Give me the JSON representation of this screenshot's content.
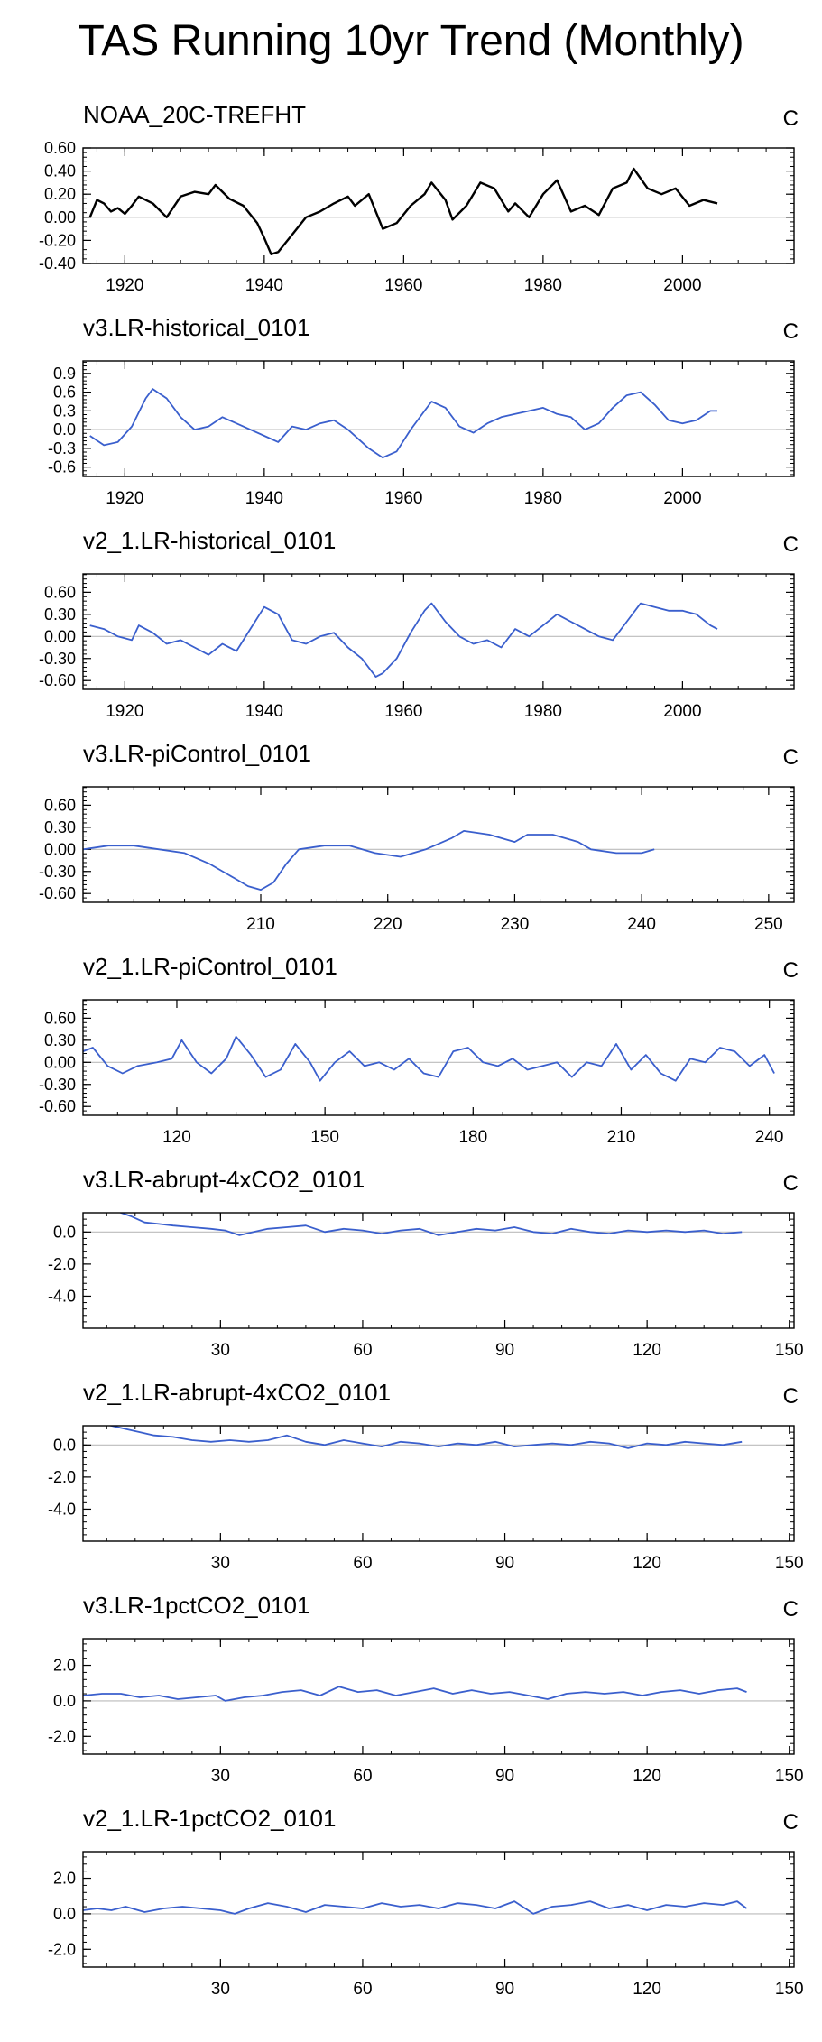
{
  "title": "TAS Running 10yr Trend (Monthly)",
  "colors": {
    "obs": "#000000",
    "model": "#3a5fcd",
    "zero": "#bbbbbb",
    "axis": "#000000"
  },
  "chart_data": [
    {
      "type": "line",
      "title": "NOAA_20C-TREFHT",
      "unit": "C",
      "color": "obs",
      "xlim": [
        1914,
        2016
      ],
      "ylim": [
        -0.4,
        0.6
      ],
      "xticks": [
        1920,
        1940,
        1960,
        1980,
        2000
      ],
      "xtick_labels": [
        "1920",
        "1940",
        "1960",
        "1980",
        "2000"
      ],
      "yticks": [
        -0.4,
        -0.2,
        0.0,
        0.2,
        0.4,
        0.6
      ],
      "ytick_labels": [
        "-0.40",
        "-0.20",
        "0.00",
        "0.20",
        "0.40",
        "0.60"
      ],
      "x": [
        1915,
        1916,
        1917,
        1918,
        1919,
        1920,
        1921,
        1922,
        1924,
        1926,
        1928,
        1930,
        1932,
        1933,
        1935,
        1937,
        1939,
        1940,
        1941,
        1942,
        1944,
        1946,
        1948,
        1950,
        1952,
        1953,
        1955,
        1956,
        1957,
        1959,
        1961,
        1963,
        1964,
        1966,
        1967,
        1969,
        1971,
        1973,
        1975,
        1976,
        1978,
        1980,
        1982,
        1984,
        1986,
        1988,
        1990,
        1992,
        1993,
        1995,
        1997,
        1999,
        2001,
        2003,
        2005
      ],
      "values": [
        0.0,
        0.15,
        0.12,
        0.05,
        0.08,
        0.03,
        0.1,
        0.18,
        0.12,
        0.0,
        0.18,
        0.22,
        0.2,
        0.28,
        0.16,
        0.1,
        -0.05,
        -0.18,
        -0.32,
        -0.3,
        -0.15,
        0.0,
        0.05,
        0.12,
        0.18,
        0.1,
        0.2,
        0.05,
        -0.1,
        -0.05,
        0.1,
        0.2,
        0.3,
        0.15,
        -0.02,
        0.1,
        0.3,
        0.25,
        0.05,
        0.12,
        0.0,
        0.2,
        0.32,
        0.05,
        0.1,
        0.02,
        0.25,
        0.3,
        0.42,
        0.25,
        0.2,
        0.25,
        0.1,
        0.15,
        0.12
      ]
    },
    {
      "type": "line",
      "title": "v3.LR-historical_0101",
      "unit": "C",
      "color": "model",
      "xlim": [
        1914,
        2016
      ],
      "ylim": [
        -0.75,
        1.1
      ],
      "xticks": [
        1920,
        1940,
        1960,
        1980,
        2000
      ],
      "xtick_labels": [
        "1920",
        "1940",
        "1960",
        "1980",
        "2000"
      ],
      "yticks": [
        -0.6,
        -0.3,
        0.0,
        0.3,
        0.6,
        0.9
      ],
      "ytick_labels": [
        "-0.6",
        "-0.3",
        "0.0",
        "0.3",
        "0.6",
        "0.9"
      ],
      "x": [
        1915,
        1917,
        1919,
        1921,
        1923,
        1924,
        1926,
        1928,
        1930,
        1932,
        1934,
        1936,
        1938,
        1940,
        1942,
        1944,
        1946,
        1948,
        1950,
        1952,
        1954,
        1955,
        1957,
        1959,
        1961,
        1963,
        1964,
        1966,
        1968,
        1970,
        1972,
        1974,
        1976,
        1978,
        1980,
        1982,
        1984,
        1986,
        1988,
        1990,
        1992,
        1994,
        1996,
        1998,
        2000,
        2002,
        2004,
        2005
      ],
      "values": [
        -0.1,
        -0.25,
        -0.2,
        0.05,
        0.5,
        0.65,
        0.5,
        0.2,
        0.0,
        0.05,
        0.2,
        0.1,
        0.0,
        -0.1,
        -0.2,
        0.05,
        0.0,
        0.1,
        0.15,
        0.0,
        -0.2,
        -0.3,
        -0.45,
        -0.35,
        0.0,
        0.3,
        0.45,
        0.35,
        0.05,
        -0.05,
        0.1,
        0.2,
        0.25,
        0.3,
        0.35,
        0.25,
        0.2,
        0.0,
        0.1,
        0.35,
        0.55,
        0.6,
        0.4,
        0.15,
        0.1,
        0.15,
        0.3,
        0.3
      ]
    },
    {
      "type": "line",
      "title": "v2_1.LR-historical_0101",
      "unit": "C",
      "color": "model",
      "xlim": [
        1914,
        2016
      ],
      "ylim": [
        -0.72,
        0.85
      ],
      "xticks": [
        1920,
        1940,
        1960,
        1980,
        2000
      ],
      "xtick_labels": [
        "1920",
        "1940",
        "1960",
        "1980",
        "2000"
      ],
      "yticks": [
        -0.6,
        -0.3,
        0.0,
        0.3,
        0.6
      ],
      "ytick_labels": [
        "-0.60",
        "-0.30",
        "0.00",
        "0.30",
        "0.60"
      ],
      "x": [
        1915,
        1917,
        1919,
        1921,
        1922,
        1924,
        1926,
        1928,
        1930,
        1932,
        1934,
        1936,
        1938,
        1940,
        1942,
        1944,
        1946,
        1948,
        1950,
        1952,
        1954,
        1956,
        1957,
        1959,
        1961,
        1963,
        1964,
        1966,
        1968,
        1970,
        1972,
        1974,
        1976,
        1978,
        1980,
        1982,
        1984,
        1986,
        1988,
        1990,
        1992,
        1994,
        1996,
        1998,
        2000,
        2002,
        2004,
        2005
      ],
      "values": [
        0.15,
        0.1,
        0.0,
        -0.05,
        0.15,
        0.05,
        -0.1,
        -0.05,
        -0.15,
        -0.25,
        -0.1,
        -0.2,
        0.1,
        0.4,
        0.3,
        -0.05,
        -0.1,
        0.0,
        0.05,
        -0.15,
        -0.3,
        -0.55,
        -0.5,
        -0.3,
        0.05,
        0.35,
        0.45,
        0.2,
        0.0,
        -0.1,
        -0.05,
        -0.15,
        0.1,
        0.0,
        0.15,
        0.3,
        0.2,
        0.1,
        0.0,
        -0.05,
        0.2,
        0.45,
        0.4,
        0.35,
        0.35,
        0.3,
        0.15,
        0.1
      ]
    },
    {
      "type": "line",
      "title": "v3.LR-piControl_0101",
      "unit": "C",
      "color": "model",
      "xlim": [
        196,
        252
      ],
      "ylim": [
        -0.72,
        0.85
      ],
      "xticks": [
        210,
        220,
        230,
        240,
        250
      ],
      "xtick_labels": [
        "210",
        "220",
        "230",
        "240",
        "250"
      ],
      "yticks": [
        -0.6,
        -0.3,
        0.0,
        0.3,
        0.6
      ],
      "ytick_labels": [
        "-0.60",
        "-0.30",
        "0.00",
        "0.30",
        "0.60"
      ],
      "x": [
        196,
        198,
        200,
        202,
        204,
        206,
        208,
        209,
        210,
        211,
        212,
        213,
        215,
        217,
        219,
        221,
        223,
        225,
        226,
        228,
        230,
        231,
        233,
        235,
        236,
        238,
        240,
        241
      ],
      "values": [
        0.0,
        0.05,
        0.05,
        0.0,
        -0.05,
        -0.2,
        -0.4,
        -0.5,
        -0.55,
        -0.45,
        -0.2,
        0.0,
        0.05,
        0.05,
        -0.05,
        -0.1,
        0.0,
        0.15,
        0.25,
        0.2,
        0.1,
        0.2,
        0.2,
        0.1,
        0.0,
        -0.05,
        -0.05,
        0.0
      ]
    },
    {
      "type": "line",
      "title": "v2_1.LR-piControl_0101",
      "unit": "C",
      "color": "model",
      "xlim": [
        101,
        245
      ],
      "ylim": [
        -0.72,
        0.85
      ],
      "xticks": [
        120,
        150,
        180,
        210,
        240
      ],
      "xtick_labels": [
        "120",
        "150",
        "180",
        "210",
        "240"
      ],
      "yticks": [
        -0.6,
        -0.3,
        0.0,
        0.3,
        0.6
      ],
      "ytick_labels": [
        "-0.60",
        "-0.30",
        "0.00",
        "0.30",
        "0.60"
      ],
      "x": [
        101,
        103,
        106,
        109,
        112,
        116,
        119,
        121,
        124,
        127,
        130,
        132,
        135,
        138,
        141,
        144,
        147,
        149,
        152,
        155,
        158,
        161,
        164,
        167,
        170,
        173,
        176,
        179,
        182,
        185,
        188,
        191,
        194,
        197,
        200,
        203,
        206,
        209,
        212,
        215,
        218,
        221,
        224,
        227,
        230,
        233,
        236,
        239,
        241
      ],
      "values": [
        0.15,
        0.2,
        -0.05,
        -0.15,
        -0.05,
        0.0,
        0.05,
        0.3,
        0.0,
        -0.15,
        0.05,
        0.35,
        0.1,
        -0.2,
        -0.1,
        0.25,
        0.0,
        -0.25,
        0.0,
        0.15,
        -0.05,
        0.0,
        -0.1,
        0.05,
        -0.15,
        -0.2,
        0.15,
        0.2,
        0.0,
        -0.05,
        0.05,
        -0.1,
        -0.05,
        0.0,
        -0.2,
        0.0,
        -0.05,
        0.25,
        -0.1,
        0.1,
        -0.15,
        -0.25,
        0.05,
        0.0,
        0.2,
        0.15,
        -0.05,
        0.1,
        -0.15
      ]
    },
    {
      "type": "line",
      "title": "v3.LR-abrupt-4xCO2_0101",
      "unit": "C",
      "color": "model",
      "xlim": [
        1,
        151
      ],
      "ylim": [
        -6.0,
        1.2
      ],
      "xticks": [
        30,
        60,
        90,
        120,
        150
      ],
      "xtick_labels": [
        "30",
        "60",
        "90",
        "120",
        "150"
      ],
      "yticks": [
        -4.0,
        -2.0,
        0.0
      ],
      "ytick_labels": [
        "-4.0",
        "-2.0",
        "0.0"
      ],
      "x": [
        8,
        11,
        14,
        17,
        20,
        24,
        28,
        31,
        34,
        37,
        40,
        44,
        48,
        52,
        56,
        60,
        64,
        68,
        72,
        76,
        80,
        84,
        88,
        92,
        96,
        100,
        104,
        108,
        112,
        116,
        120,
        124,
        128,
        132,
        136,
        140
      ],
      "values": [
        1.3,
        1.0,
        0.6,
        0.5,
        0.4,
        0.3,
        0.2,
        0.1,
        -0.2,
        0.0,
        0.2,
        0.3,
        0.4,
        0.0,
        0.2,
        0.1,
        -0.1,
        0.1,
        0.2,
        -0.2,
        0.0,
        0.2,
        0.1,
        0.3,
        0.0,
        -0.1,
        0.2,
        0.0,
        -0.1,
        0.1,
        0.0,
        0.1,
        0.0,
        0.1,
        -0.1,
        0.0
      ]
    },
    {
      "type": "line",
      "title": "v2_1.LR-abrupt-4xCO2_0101",
      "unit": "C",
      "color": "model",
      "xlim": [
        1,
        151
      ],
      "ylim": [
        -6.0,
        1.2
      ],
      "xticks": [
        30,
        60,
        90,
        120,
        150
      ],
      "xtick_labels": [
        "30",
        "60",
        "90",
        "120",
        "150"
      ],
      "yticks": [
        -4.0,
        -2.0,
        0.0
      ],
      "ytick_labels": [
        "-4.0",
        "-2.0",
        "0.0"
      ],
      "x": [
        4,
        7,
        10,
        13,
        16,
        20,
        24,
        28,
        32,
        36,
        40,
        44,
        48,
        52,
        56,
        60,
        64,
        68,
        72,
        76,
        80,
        84,
        88,
        92,
        96,
        100,
        104,
        108,
        112,
        116,
        120,
        124,
        128,
        132,
        136,
        140
      ],
      "values": [
        1.4,
        1.2,
        1.0,
        0.8,
        0.6,
        0.5,
        0.3,
        0.2,
        0.3,
        0.2,
        0.3,
        0.6,
        0.2,
        0.0,
        0.3,
        0.1,
        -0.1,
        0.2,
        0.1,
        -0.1,
        0.1,
        0.0,
        0.2,
        -0.1,
        0.0,
        0.1,
        0.0,
        0.2,
        0.1,
        -0.2,
        0.1,
        0.0,
        0.2,
        0.1,
        0.0,
        0.2
      ]
    },
    {
      "type": "line",
      "title": "v3.LR-1pctCO2_0101",
      "unit": "C",
      "color": "model",
      "xlim": [
        1,
        151
      ],
      "ylim": [
        -3.0,
        3.5
      ],
      "xticks": [
        30,
        60,
        90,
        120,
        150
      ],
      "xtick_labels": [
        "30",
        "60",
        "90",
        "120",
        "150"
      ],
      "yticks": [
        -2.0,
        0.0,
        2.0
      ],
      "ytick_labels": [
        "-2.0",
        "0.0",
        "2.0"
      ],
      "x": [
        1,
        5,
        9,
        13,
        17,
        21,
        25,
        29,
        31,
        35,
        39,
        43,
        47,
        51,
        55,
        59,
        63,
        67,
        71,
        75,
        79,
        83,
        87,
        91,
        95,
        99,
        103,
        107,
        111,
        115,
        119,
        123,
        127,
        131,
        135,
        139,
        141
      ],
      "values": [
        0.3,
        0.4,
        0.4,
        0.2,
        0.3,
        0.1,
        0.2,
        0.3,
        0.0,
        0.2,
        0.3,
        0.5,
        0.6,
        0.3,
        0.8,
        0.5,
        0.6,
        0.3,
        0.5,
        0.7,
        0.4,
        0.6,
        0.4,
        0.5,
        0.3,
        0.1,
        0.4,
        0.5,
        0.4,
        0.5,
        0.3,
        0.5,
        0.6,
        0.4,
        0.6,
        0.7,
        0.5
      ]
    },
    {
      "type": "line",
      "title": "v2_1.LR-1pctCO2_0101",
      "unit": "C",
      "color": "model",
      "xlim": [
        1,
        151
      ],
      "ylim": [
        -3.0,
        3.5
      ],
      "xticks": [
        30,
        60,
        90,
        120,
        150
      ],
      "xtick_labels": [
        "30",
        "60",
        "90",
        "120",
        "150"
      ],
      "yticks": [
        -2.0,
        0.0,
        2.0
      ],
      "ytick_labels": [
        "-2.0",
        "0.0",
        "2.0"
      ],
      "x": [
        1,
        4,
        7,
        10,
        14,
        18,
        22,
        26,
        30,
        33,
        36,
        40,
        44,
        48,
        52,
        56,
        60,
        64,
        68,
        72,
        76,
        80,
        84,
        88,
        92,
        96,
        100,
        104,
        108,
        112,
        116,
        120,
        124,
        128,
        132,
        136,
        139,
        141
      ],
      "values": [
        0.2,
        0.3,
        0.2,
        0.4,
        0.1,
        0.3,
        0.4,
        0.3,
        0.2,
        0.0,
        0.3,
        0.6,
        0.4,
        0.1,
        0.5,
        0.4,
        0.3,
        0.6,
        0.4,
        0.5,
        0.3,
        0.6,
        0.5,
        0.3,
        0.7,
        0.0,
        0.4,
        0.5,
        0.7,
        0.3,
        0.5,
        0.2,
        0.5,
        0.4,
        0.6,
        0.5,
        0.7,
        0.3
      ]
    }
  ]
}
